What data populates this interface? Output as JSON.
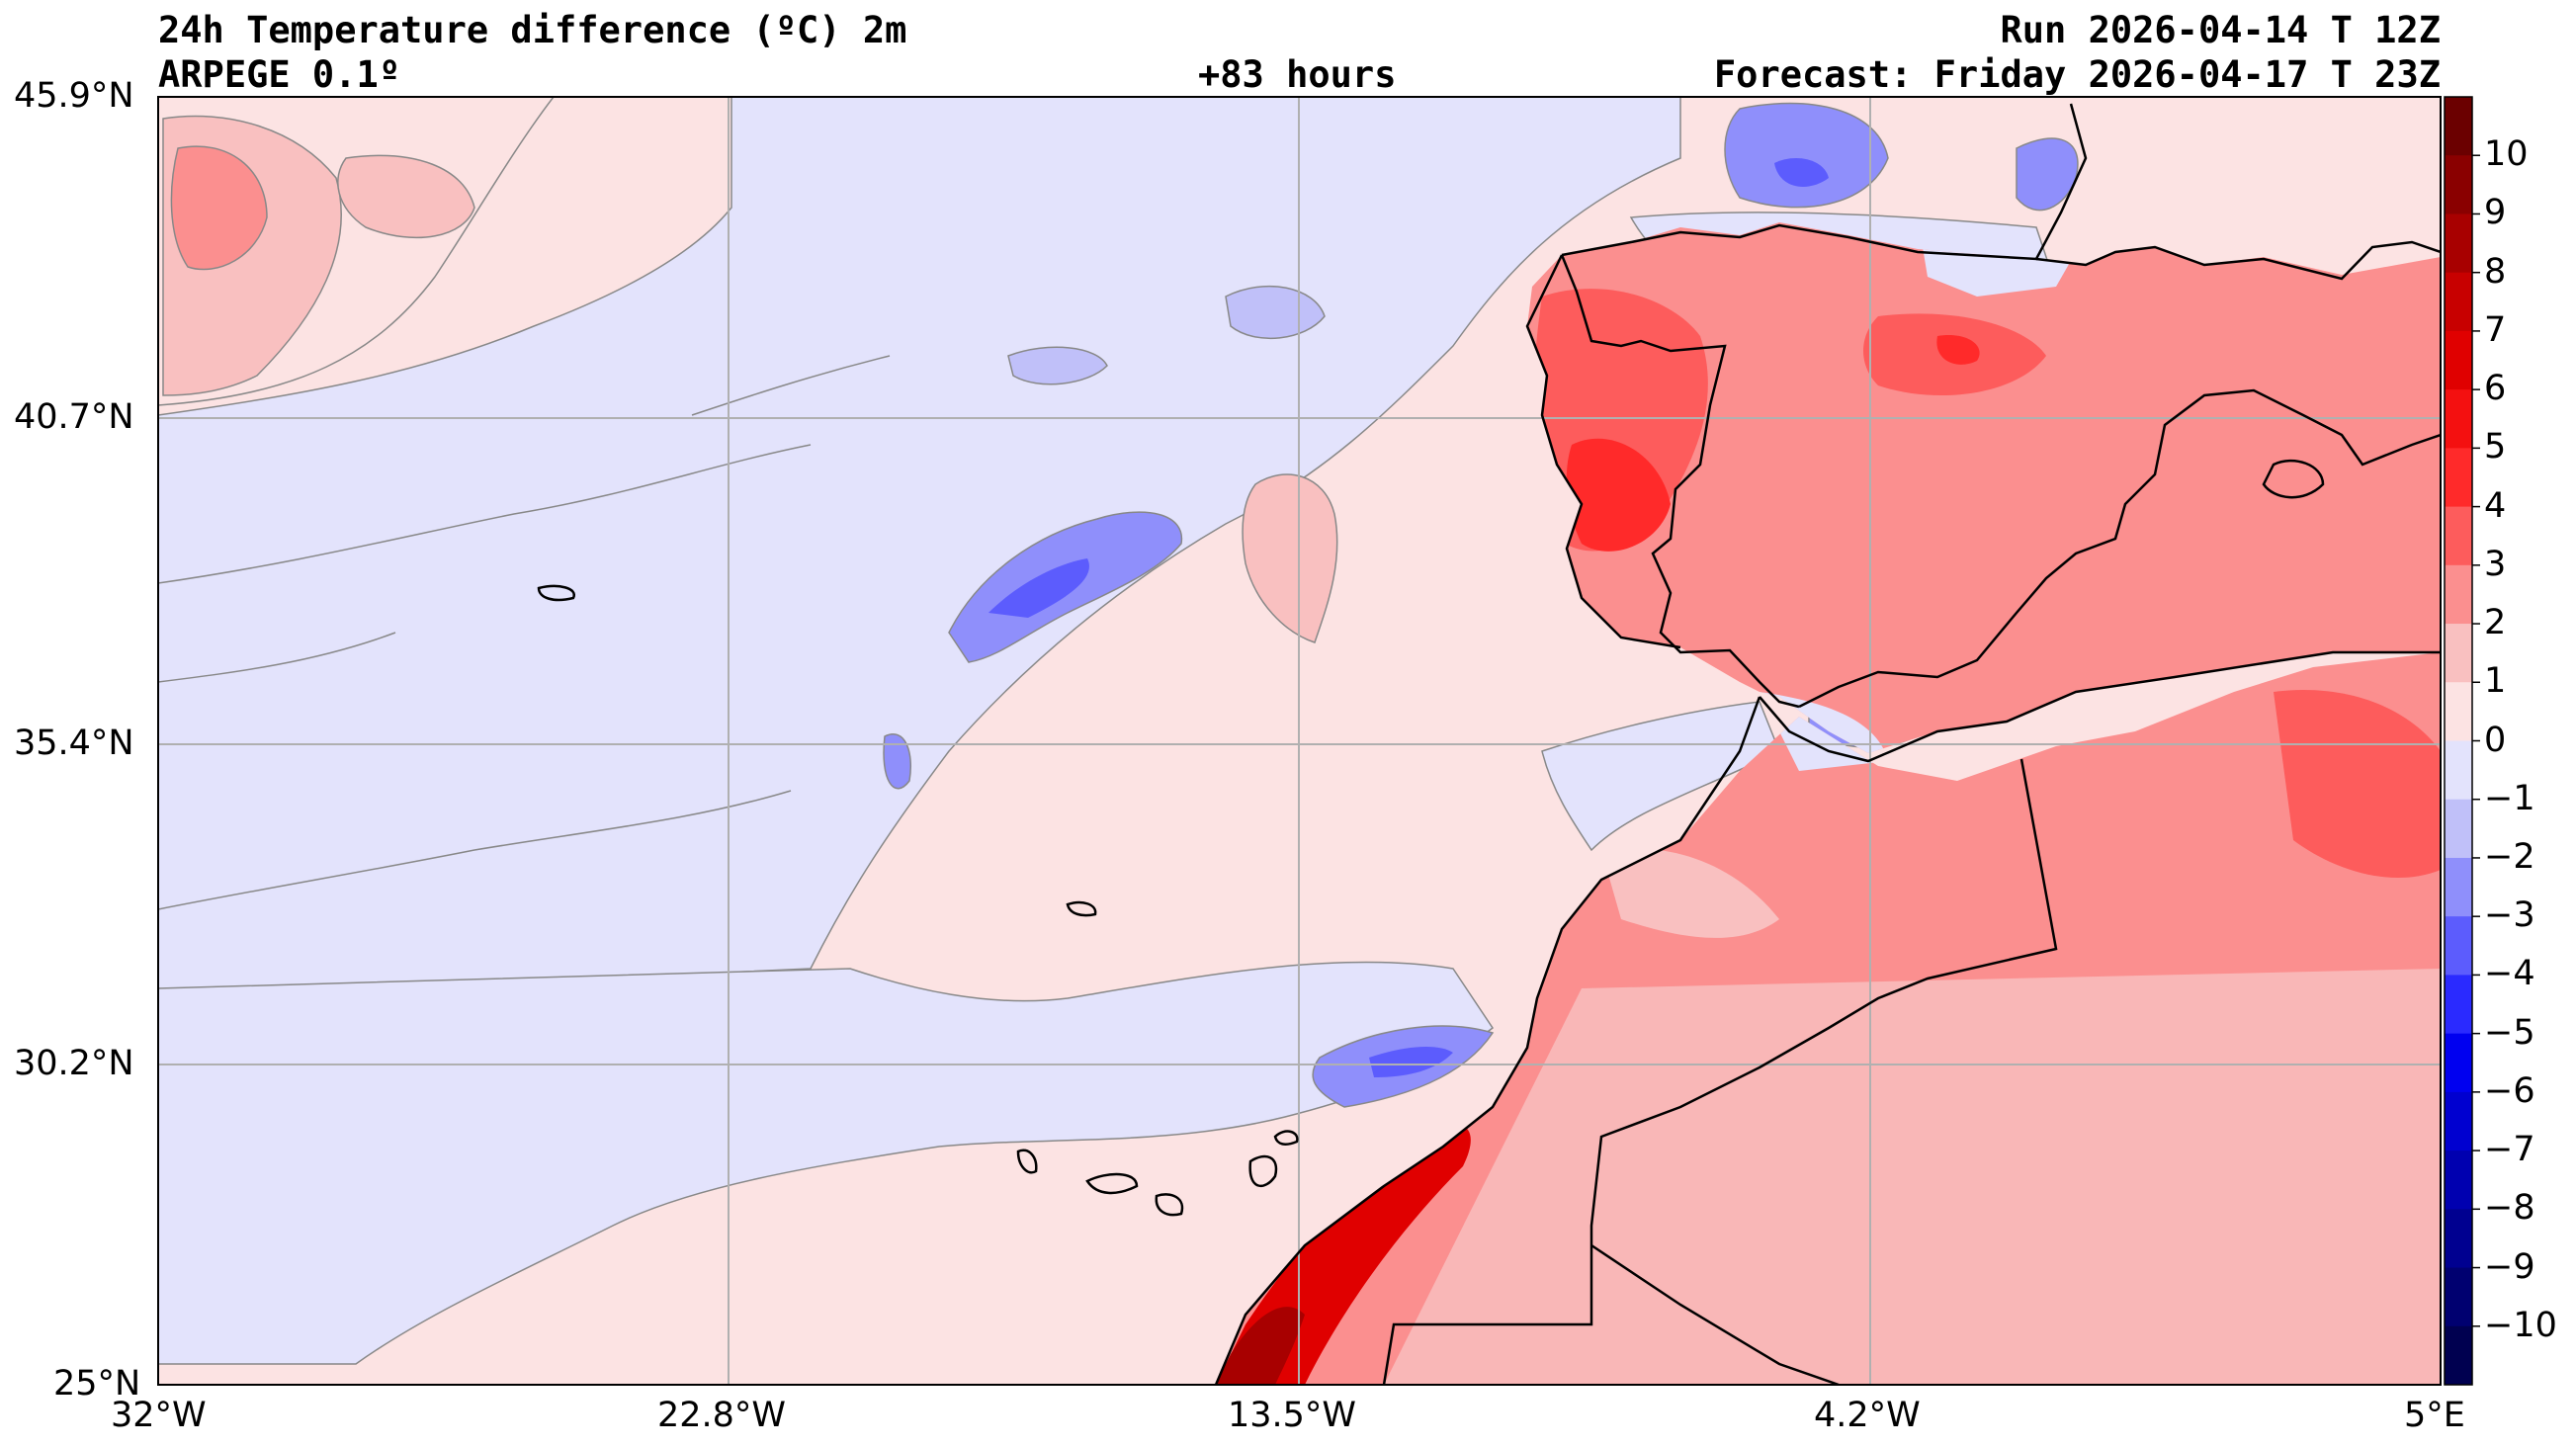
{
  "header": {
    "title": "24h Temperature difference (ºC) 2m",
    "model": "ARPEGE 0.1º",
    "lead_time": "+83 hours",
    "run": "Run 2026-04-14 T 12Z",
    "forecast": "Forecast: Friday 2026-04-17 T 23Z"
  },
  "map": {
    "lon_range": [
      -32,
      5
    ],
    "lat_range": [
      25,
      45.9
    ],
    "lon_ticks": [
      {
        "value": -32,
        "label": "32°W"
      },
      {
        "value": -22.8,
        "label": "22.8°W"
      },
      {
        "value": -13.5,
        "label": "13.5°W"
      },
      {
        "value": -4.2,
        "label": "4.2°W"
      },
      {
        "value": 5,
        "label": "5°E"
      }
    ],
    "lat_ticks": [
      {
        "value": 45.9,
        "label": "45.9°N"
      },
      {
        "value": 40.7,
        "label": "40.7°N"
      },
      {
        "value": 35.4,
        "label": "35.4°N"
      },
      {
        "value": 30.2,
        "label": "30.2°N"
      },
      {
        "value": 25,
        "label": "25°N"
      }
    ],
    "grid": true,
    "colors": {
      "ocean_background": "#fce3e3",
      "coastline": "#000000",
      "grid": "#b0b0b0",
      "contour_line": "#888888"
    }
  },
  "colorbar": {
    "ticks": [
      {
        "value": 10,
        "label": "10"
      },
      {
        "value": 9,
        "label": "9"
      },
      {
        "value": 8,
        "label": "8"
      },
      {
        "value": 7,
        "label": "7"
      },
      {
        "value": 6,
        "label": "6"
      },
      {
        "value": 5,
        "label": "5"
      },
      {
        "value": 4,
        "label": "4"
      },
      {
        "value": 3,
        "label": "3"
      },
      {
        "value": 2,
        "label": "2"
      },
      {
        "value": 1,
        "label": "1"
      },
      {
        "value": 0,
        "label": "0"
      },
      {
        "value": -1,
        "label": "−1"
      },
      {
        "value": -2,
        "label": "−2"
      },
      {
        "value": -3,
        "label": "−3"
      },
      {
        "value": -4,
        "label": "−4"
      },
      {
        "value": -5,
        "label": "−5"
      },
      {
        "value": -6,
        "label": "−6"
      },
      {
        "value": -7,
        "label": "−7"
      },
      {
        "value": -8,
        "label": "−8"
      },
      {
        "value": -9,
        "label": "−9"
      },
      {
        "value": -10,
        "label": "−10"
      }
    ],
    "bins": [
      {
        "from": 10,
        "to": 11,
        "color": "#6b0000"
      },
      {
        "from": 9,
        "to": 10,
        "color": "#8a0000"
      },
      {
        "from": 8,
        "to": 9,
        "color": "#a80000"
      },
      {
        "from": 7,
        "to": 8,
        "color": "#c80000"
      },
      {
        "from": 6,
        "to": 7,
        "color": "#e00000"
      },
      {
        "from": 5,
        "to": 6,
        "color": "#f41010"
      },
      {
        "from": 4,
        "to": 5,
        "color": "#ff2a2a"
      },
      {
        "from": 3,
        "to": 4,
        "color": "#fd5c5c"
      },
      {
        "from": 2,
        "to": 3,
        "color": "#fb8f8f"
      },
      {
        "from": 1,
        "to": 2,
        "color": "#f9c0c0"
      },
      {
        "from": 0,
        "to": 1,
        "color": "#fce3e3"
      },
      {
        "from": -1,
        "to": 0,
        "color": "#e3e3fc"
      },
      {
        "from": -2,
        "to": -1,
        "color": "#c0c0f9"
      },
      {
        "from": -3,
        "to": -2,
        "color": "#8f8ffb"
      },
      {
        "from": -4,
        "to": -3,
        "color": "#5c5cfd"
      },
      {
        "from": -5,
        "to": -4,
        "color": "#2a2aff"
      },
      {
        "from": -6,
        "to": -5,
        "color": "#0000f0"
      },
      {
        "from": -7,
        "to": -6,
        "color": "#0000d0"
      },
      {
        "from": -8,
        "to": -7,
        "color": "#0000b0"
      },
      {
        "from": -9,
        "to": -8,
        "color": "#000090"
      },
      {
        "from": -10,
        "to": -9,
        "color": "#000070"
      },
      {
        "from": -11,
        "to": -10,
        "color": "#000050"
      }
    ]
  }
}
